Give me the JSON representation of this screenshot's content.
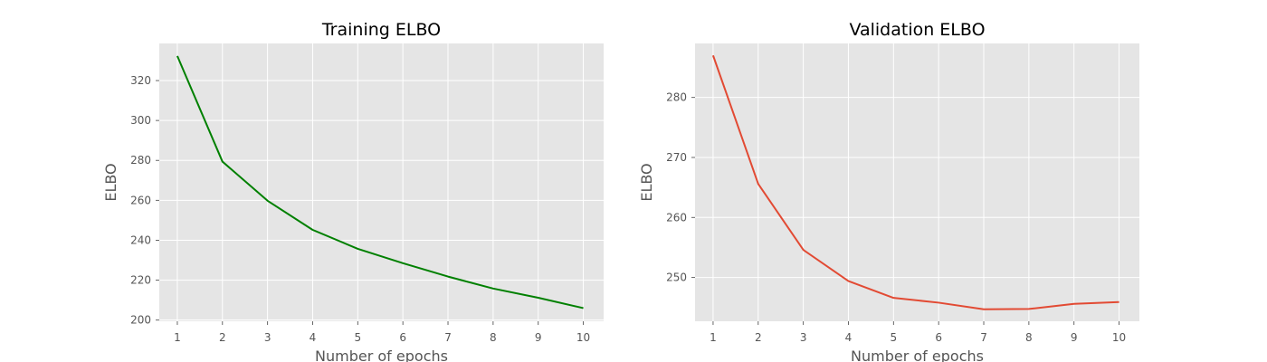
{
  "chart_data": [
    {
      "type": "line",
      "title": "Training ELBO",
      "xlabel": "Number of epochs",
      "ylabel": "ELBO",
      "x": [
        1,
        2,
        3,
        4,
        5,
        6,
        7,
        8,
        9,
        10
      ],
      "xticks": [
        "1",
        "2",
        "3",
        "4",
        "5",
        "6",
        "7",
        "8",
        "9",
        "10"
      ],
      "yticks": [
        200,
        220,
        240,
        260,
        280,
        300,
        320
      ],
      "xlim": [
        0.6,
        10.45
      ],
      "ylim": [
        199.4,
        338.6
      ],
      "grid": true,
      "series": [
        {
          "color": "#008000",
          "values": [
            332.3,
            279.4,
            259.8,
            245.2,
            235.7,
            228.5,
            221.8,
            215.8,
            211.2,
            206.0
          ]
        }
      ]
    },
    {
      "type": "line",
      "title": "Validation ELBO",
      "xlabel": "Number of epochs",
      "ylabel": "ELBO",
      "x": [
        1,
        2,
        3,
        4,
        5,
        6,
        7,
        8,
        9,
        10
      ],
      "xticks": [
        "1",
        "2",
        "3",
        "4",
        "5",
        "6",
        "7",
        "8",
        "9",
        "10"
      ],
      "yticks": [
        250,
        260,
        270,
        280
      ],
      "xlim": [
        0.6,
        10.45
      ],
      "ylim": [
        242.7,
        289.0
      ],
      "grid": true,
      "series": [
        {
          "color": "#e24a33",
          "values": [
            287.0,
            265.6,
            254.6,
            249.4,
            246.6,
            245.8,
            244.7,
            244.75,
            245.6,
            245.9
          ]
        }
      ]
    }
  ]
}
